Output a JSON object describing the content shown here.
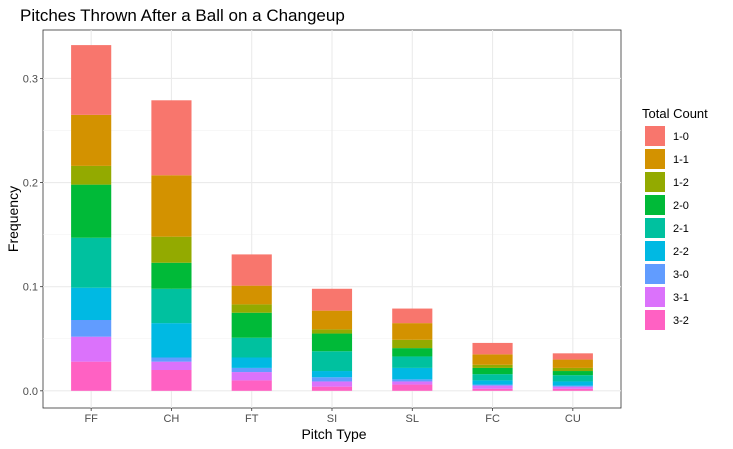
{
  "chart_data": {
    "type": "bar",
    "stacked": true,
    "title": "Pitches Thrown After a Ball on a Changeup",
    "xlabel": "Pitch Type",
    "ylabel": "Frequency",
    "ylim": [
      -0.0165,
      0.3465
    ],
    "yticks": [
      0.0,
      0.1,
      0.2,
      0.3
    ],
    "ytick_labels": [
      "0.0",
      "0.1",
      "0.2",
      "0.3"
    ],
    "grid": true,
    "legend": {
      "title": "Total Count",
      "position": "right"
    },
    "categories": [
      "FF",
      "CH",
      "FT",
      "SI",
      "SL",
      "FC",
      "CU"
    ],
    "series": [
      {
        "name": "1-0",
        "color": "#F8766D",
        "values": [
          0.067,
          0.072,
          0.03,
          0.021,
          0.014,
          0.011,
          0.006
        ]
      },
      {
        "name": "1-1",
        "color": "#D39200",
        "values": [
          0.049,
          0.059,
          0.018,
          0.018,
          0.016,
          0.01,
          0.008
        ]
      },
      {
        "name": "1-2",
        "color": "#93AA00",
        "values": [
          0.018,
          0.025,
          0.008,
          0.004,
          0.008,
          0.003,
          0.003
        ]
      },
      {
        "name": "2-0",
        "color": "#00BA38",
        "values": [
          0.051,
          0.025,
          0.024,
          0.017,
          0.008,
          0.006,
          0.004
        ]
      },
      {
        "name": "2-1",
        "color": "#00C19F",
        "values": [
          0.048,
          0.033,
          0.019,
          0.019,
          0.011,
          0.006,
          0.006
        ]
      },
      {
        "name": "2-2",
        "color": "#00B9E3",
        "values": [
          0.031,
          0.033,
          0.01,
          0.006,
          0.011,
          0.004,
          0.004
        ]
      },
      {
        "name": "3-0",
        "color": "#619CFF",
        "values": [
          0.016,
          0.004,
          0.004,
          0.004,
          0.002,
          0.001,
          0.001
        ]
      },
      {
        "name": "3-1",
        "color": "#DB72FB",
        "values": [
          0.024,
          0.008,
          0.008,
          0.005,
          0.003,
          0.003,
          0.002
        ]
      },
      {
        "name": "3-2",
        "color": "#FF61C3",
        "values": [
          0.028,
          0.02,
          0.01,
          0.004,
          0.006,
          0.002,
          0.002
        ]
      }
    ]
  }
}
